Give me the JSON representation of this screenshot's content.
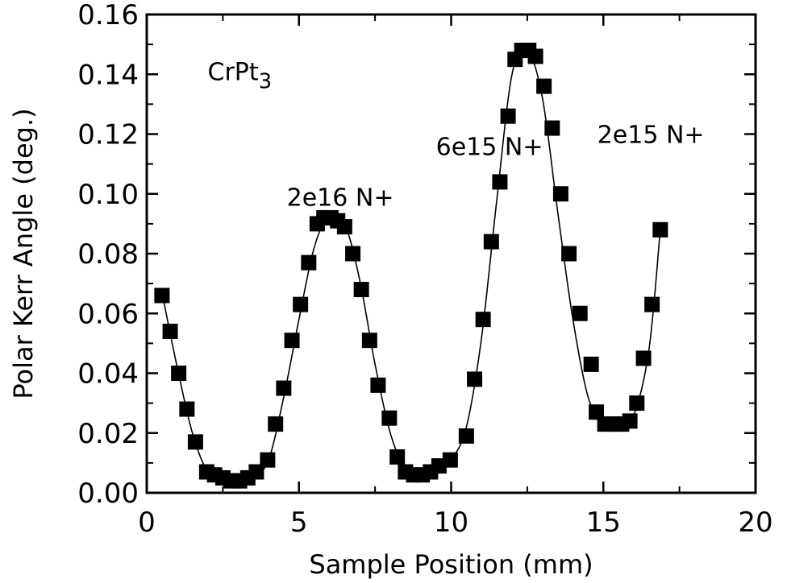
{
  "chart_data": {
    "type": "scatter",
    "xlabel": "Sample Position (mm)",
    "ylabel": "Polar Kerr Angle (deg.)",
    "xlim": [
      0,
      20
    ],
    "ylim": [
      0,
      0.16
    ],
    "x_ticks": [
      "0",
      "5",
      "10",
      "15",
      "20"
    ],
    "y_ticks": [
      "0.00",
      "0.02",
      "0.04",
      "0.06",
      "0.08",
      "0.10",
      "0.12",
      "0.14",
      "0.16"
    ],
    "material": {
      "base": "CrPt",
      "subscript": "3"
    },
    "annotations": [
      {
        "text": "2e16 N+",
        "x": 4.6,
        "y": 0.096
      },
      {
        "text": "6e15 N+",
        "x": 9.5,
        "y": 0.113
      },
      {
        "text": "2e15 N+",
        "x": 14.8,
        "y": 0.117
      }
    ],
    "grid": false,
    "legend": "none",
    "series": [
      {
        "marker": "square",
        "color": "#000000",
        "x": [
          0.5,
          0.77,
          1.05,
          1.32,
          1.6,
          1.97,
          2.23,
          2.5,
          2.77,
          3.05,
          3.32,
          3.6,
          3.97,
          4.23,
          4.5,
          4.77,
          5.05,
          5.32,
          5.6,
          5.82,
          6.05,
          6.27,
          6.5,
          6.77,
          7.05,
          7.32,
          7.6,
          7.97,
          8.23,
          8.5,
          8.77,
          9.05,
          9.32,
          9.6,
          9.97,
          10.5,
          10.77,
          11.05,
          11.32,
          11.6,
          11.87,
          12.1,
          12.32,
          12.55,
          12.77,
          13.05,
          13.32,
          13.6,
          13.87,
          14.23,
          14.6,
          14.77,
          15.05,
          15.32,
          15.6,
          15.87,
          16.1,
          16.32,
          16.6,
          16.87
        ],
        "y": [
          0.066,
          0.054,
          0.04,
          0.028,
          0.017,
          0.007,
          0.006,
          0.005,
          0.004,
          0.004,
          0.005,
          0.007,
          0.011,
          0.023,
          0.035,
          0.051,
          0.063,
          0.077,
          0.09,
          0.092,
          0.092,
          0.091,
          0.089,
          0.08,
          0.068,
          0.051,
          0.036,
          0.025,
          0.012,
          0.007,
          0.006,
          0.006,
          0.007,
          0.009,
          0.011,
          0.019,
          0.038,
          0.058,
          0.084,
          0.104,
          0.126,
          0.145,
          0.148,
          0.148,
          0.146,
          0.136,
          0.122,
          0.1,
          0.08,
          0.06,
          0.043,
          0.027,
          0.023,
          0.023,
          0.023,
          0.024,
          0.03,
          0.045,
          0.063,
          0.088
        ]
      }
    ],
    "fit_line": {
      "x": [
        0.5,
        1.0,
        1.5,
        2.0,
        2.5,
        3.0,
        3.5,
        4.0,
        4.5,
        5.0,
        5.5,
        6.0,
        6.5,
        7.0,
        7.5,
        8.0,
        8.5,
        9.0,
        9.5,
        10.0,
        10.5,
        11.0,
        11.5,
        12.0,
        12.5,
        13.0,
        13.5,
        14.0,
        14.5,
        15.0,
        15.5,
        16.0,
        16.5,
        16.87
      ],
      "y": [
        0.067,
        0.042,
        0.02,
        0.007,
        0.004,
        0.003,
        0.005,
        0.011,
        0.032,
        0.058,
        0.082,
        0.093,
        0.09,
        0.071,
        0.043,
        0.02,
        0.008,
        0.005,
        0.006,
        0.011,
        0.022,
        0.052,
        0.098,
        0.14,
        0.148,
        0.132,
        0.094,
        0.058,
        0.032,
        0.023,
        0.022,
        0.026,
        0.048,
        0.088
      ]
    }
  }
}
